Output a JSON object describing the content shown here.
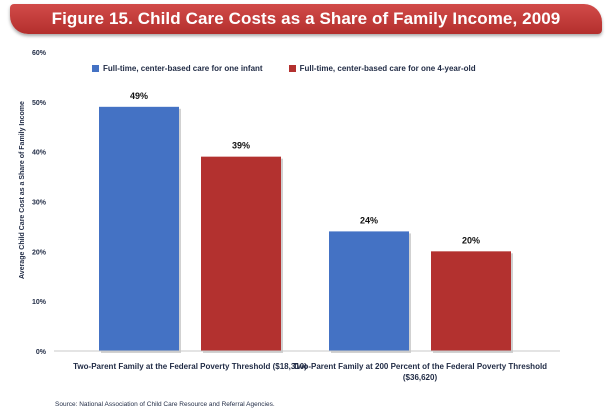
{
  "colors": {
    "series_infant": "#4472c4",
    "series_four_year_old": "#b3312f",
    "title_bar": "#c0403e"
  },
  "source": "Source: National Association of Child Care Resource and Referral Agencies.",
  "chart_data": {
    "type": "bar",
    "title": "Figure 15. Child Care Costs as a Share of Family Income, 2009",
    "ylabel": "Average Child Care Cost as a Share of Family Income",
    "xlabel": "",
    "ylim": [
      0,
      60
    ],
    "yticks": [
      "0%",
      "10%",
      "20%",
      "30%",
      "40%",
      "50%",
      "60%"
    ],
    "ytick_values": [
      0,
      10,
      20,
      30,
      40,
      50,
      60
    ],
    "grid": false,
    "legend_position": "top",
    "categories": [
      "Two-Parent Family at the Federal Poverty Threshold ($18,310)",
      "Two-Parent Family at 200 Percent of the Federal Poverty Threshold ($36,620)"
    ],
    "category_lines": [
      [
        "Two-Parent Family at the Federal Poverty Threshold ($18,310)"
      ],
      [
        "Two-Parent Family at 200  Percent of the Federal Poverty Threshold",
        "($36,620)"
      ]
    ],
    "series": [
      {
        "name": "Full-time, center-based care for one infant",
        "values": [
          49,
          24
        ],
        "labels": [
          "49%",
          "24%"
        ]
      },
      {
        "name": "Full-time, center-based care for one 4-year-old",
        "values": [
          39,
          20
        ],
        "labels": [
          "39%",
          "20%"
        ]
      }
    ]
  }
}
